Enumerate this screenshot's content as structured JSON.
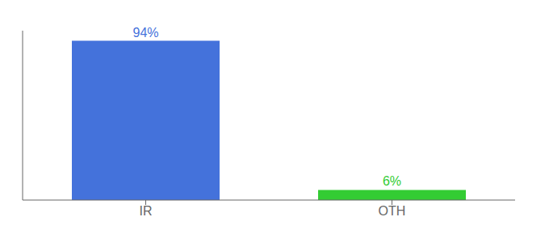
{
  "chart_data": {
    "type": "bar",
    "categories": [
      "IR",
      "OTH"
    ],
    "values": [
      94,
      6
    ],
    "value_labels": [
      "94%",
      "6%"
    ],
    "data_labels": true,
    "colors": [
      "#4472db",
      "#33cc33"
    ],
    "ylim": [
      0,
      100
    ],
    "tick_labels": "x",
    "grid": false
  }
}
